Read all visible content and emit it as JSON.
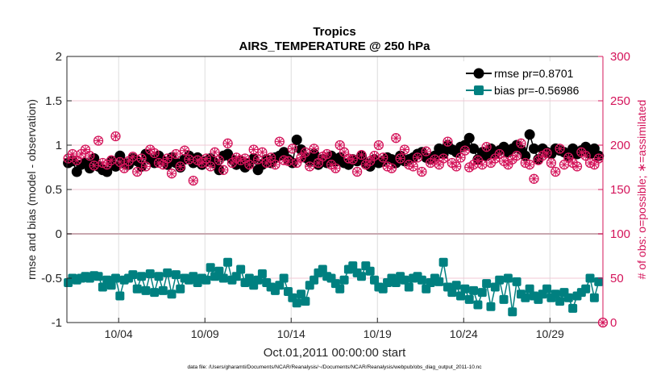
{
  "chart_data": {
    "type": "line",
    "title": "Tropics",
    "subtitle": "AIRS_TEMPERATURE @ 250 hPa",
    "xlabel": "Oct.01,2011 00:00:00 start",
    "ylabel": "rmse and bias (model - observation)",
    "y2label": "# of obs: o=possible; ∗=assimilated",
    "footnote": "data file: /Users/gharamti/Documents/NCAR/Reanalysis/~/Documents/NCAR/Reanalysis/webpub/obs_diag_output_2011-10.nc",
    "x_unit": "days since Oct.01,2011 00:00",
    "xlim": [
      0,
      31.07
    ],
    "ylim": [
      -1,
      2
    ],
    "y2lim": [
      0,
      300
    ],
    "xticks": [
      3,
      8,
      13,
      18,
      23,
      28
    ],
    "xtick_labels": [
      "10/04",
      "10/09",
      "10/14",
      "10/19",
      "10/24",
      "10/29"
    ],
    "yticks": [
      -1,
      -0.5,
      0,
      0.5,
      1,
      1.5,
      2
    ],
    "ytick_labels": [
      "-1",
      "-0.5",
      "0",
      "0.5",
      "1",
      "1.5",
      "2"
    ],
    "y2ticks": [
      0,
      50,
      100,
      150,
      200,
      250,
      300
    ],
    "y2tick_labels": [
      "0",
      "50",
      "100",
      "150",
      "200",
      "250",
      "300"
    ],
    "grid": true,
    "legend_position": "top-right",
    "x_step_days": 0.25,
    "series": [
      {
        "name": "rmse pr=0.8701",
        "axis": "left",
        "marker": "circle",
        "color": "#000000",
        "values": [
          0.8,
          0.82,
          0.7,
          0.78,
          0.8,
          0.74,
          0.85,
          0.76,
          0.72,
          0.7,
          0.82,
          0.76,
          0.88,
          0.8,
          0.78,
          0.85,
          0.82,
          0.76,
          0.9,
          0.84,
          0.8,
          0.88,
          0.82,
          0.78,
          0.86,
          0.8,
          0.75,
          0.84,
          0.88,
          0.8,
          0.86,
          0.78,
          0.82,
          0.85,
          0.8,
          0.72,
          0.88,
          0.9,
          0.84,
          0.78,
          0.82,
          0.75,
          0.8,
          0.85,
          0.72,
          0.78,
          0.84,
          0.8,
          0.86,
          0.88,
          0.92,
          0.84,
          0.8,
          1.06,
          0.95,
          0.86,
          0.82,
          0.9,
          0.78,
          0.84,
          0.8,
          0.88,
          0.82,
          0.86,
          0.8,
          0.78,
          0.84,
          0.82,
          0.88,
          0.8,
          0.76,
          0.84,
          0.8,
          0.82,
          0.86,
          0.84,
          0.8,
          0.88,
          0.82,
          0.84,
          0.86,
          0.9,
          0.92,
          0.86,
          0.84,
          0.88,
          0.96,
          0.9,
          1.0,
          0.95,
          0.92,
          0.98,
          1.0,
          1.08,
          0.96,
          0.84,
          0.92,
          0.88,
          0.96,
          0.9,
          0.94,
          0.98,
          0.92,
          0.96,
          1.0,
          0.95,
          0.88,
          1.12,
          0.96,
          0.84,
          0.96,
          0.92,
          0.9,
          0.96,
          0.94,
          0.92,
          0.88,
          0.96,
          0.9,
          0.94,
          0.98,
          0.9,
          0.96,
          0.88
        ]
      },
      {
        "name": "bias pr=-0.56986",
        "axis": "left",
        "marker": "square",
        "color": "#008080",
        "values": [
          -0.55,
          -0.5,
          -0.52,
          -0.5,
          -0.48,
          -0.5,
          -0.47,
          -0.48,
          -0.6,
          -0.52,
          -0.58,
          -0.5,
          -0.7,
          -0.52,
          -0.5,
          -0.46,
          -0.62,
          -0.48,
          -0.64,
          -0.45,
          -0.66,
          -0.48,
          -0.64,
          -0.44,
          -0.68,
          -0.46,
          -0.62,
          -0.5,
          -0.52,
          -0.48,
          -0.55,
          -0.5,
          -0.52,
          -0.38,
          -0.48,
          -0.42,
          -0.5,
          -0.32,
          -0.52,
          -0.48,
          -0.4,
          -0.55,
          -0.5,
          -0.58,
          -0.52,
          -0.45,
          -0.55,
          -0.6,
          -0.64,
          -0.58,
          -0.5,
          -0.65,
          -0.72,
          -0.78,
          -0.68,
          -0.76,
          -0.58,
          -0.52,
          -0.44,
          -0.4,
          -0.48,
          -0.5,
          -0.56,
          -0.62,
          -0.52,
          -0.4,
          -0.36,
          -0.44,
          -0.48,
          -0.36,
          -0.42,
          -0.52,
          -0.6,
          -0.62,
          -0.55,
          -0.5,
          -0.55,
          -0.48,
          -0.52,
          -0.6,
          -0.5,
          -0.48,
          -0.52,
          -0.62,
          -0.55,
          -0.5,
          -0.54,
          -0.32,
          -0.6,
          -0.66,
          -0.58,
          -0.7,
          -0.62,
          -0.74,
          -0.64,
          -0.8,
          -0.66,
          -0.56,
          -0.82,
          -0.6,
          -0.52,
          -0.74,
          -0.5,
          -0.88,
          -0.54,
          -0.68,
          -0.72,
          -0.62,
          -0.7,
          -0.74,
          -0.68,
          -0.62,
          -0.72,
          -0.68,
          -0.76,
          -0.66,
          -0.72,
          -0.84,
          -0.7,
          -0.66,
          -0.62,
          -0.5,
          -0.72,
          -0.54
        ]
      },
      {
        "name": "# obs possible",
        "axis": "right",
        "marker": "circle-open",
        "color": "#D4145A",
        "values": [
          185,
          190,
          183,
          190,
          195,
          188,
          177,
          205,
          180,
          178,
          183,
          210,
          181,
          174,
          182,
          187,
          170,
          185,
          176,
          195,
          191,
          180,
          178,
          185,
          168,
          190,
          176,
          194,
          184,
          160,
          183,
          180,
          185,
          176,
          192,
          183,
          172,
          202,
          180,
          186,
          183,
          185,
          178,
          195,
          184,
          192,
          180,
          186,
          178,
          204,
          183,
          182,
          196,
          180,
          186,
          192,
          176,
          196,
          180,
          187,
          190,
          178,
          174,
          200,
          192,
          185,
          184,
          170,
          189,
          178,
          182,
          188,
          200,
          186,
          176,
          174,
          208,
          185,
          195,
          178,
          176,
          186,
          170,
          193,
          180,
          184,
          178,
          185,
          204,
          180,
          176,
          186,
          194,
          175,
          178,
          183,
          178,
          198,
          180,
          185,
          190,
          182,
          178,
          184,
          188,
          202,
          180,
          178,
          162,
          183,
          188,
          191,
          180,
          170,
          196,
          178,
          186,
          180,
          176,
          192,
          188,
          180,
          178,
          185
        ]
      },
      {
        "name": "# obs assimilated",
        "axis": "right",
        "marker": "asterisk",
        "color": "#D4145A",
        "values": [
          185,
          190,
          183,
          190,
          195,
          188,
          177,
          205,
          180,
          178,
          183,
          210,
          181,
          174,
          182,
          187,
          170,
          185,
          176,
          195,
          191,
          180,
          178,
          185,
          168,
          190,
          176,
          194,
          184,
          160,
          183,
          180,
          185,
          176,
          192,
          183,
          172,
          202,
          180,
          186,
          183,
          185,
          178,
          195,
          184,
          192,
          180,
          186,
          178,
          204,
          183,
          182,
          196,
          180,
          186,
          192,
          176,
          196,
          180,
          187,
          190,
          178,
          174,
          200,
          192,
          185,
          184,
          170,
          189,
          178,
          182,
          188,
          200,
          186,
          176,
          174,
          208,
          185,
          195,
          178,
          176,
          186,
          170,
          193,
          180,
          184,
          178,
          185,
          204,
          180,
          176,
          186,
          194,
          175,
          178,
          183,
          178,
          198,
          180,
          185,
          190,
          182,
          178,
          184,
          188,
          202,
          180,
          178,
          162,
          183,
          188,
          191,
          180,
          170,
          196,
          178,
          186,
          180,
          176,
          192,
          188,
          180,
          178,
          185
        ]
      }
    ],
    "colors": {
      "axis": "#262626",
      "right_axis": "#D4145A",
      "zero_line": "#C8A8B0",
      "hgrid": "#F0C8D6",
      "vgrid": "#DDDDDD"
    }
  },
  "legend": {
    "rmse_label": "rmse pr=0.8701",
    "bias_label": "bias pr=-0.56986"
  },
  "marker_extra": {
    "right_axis_zero_marker": 0
  }
}
